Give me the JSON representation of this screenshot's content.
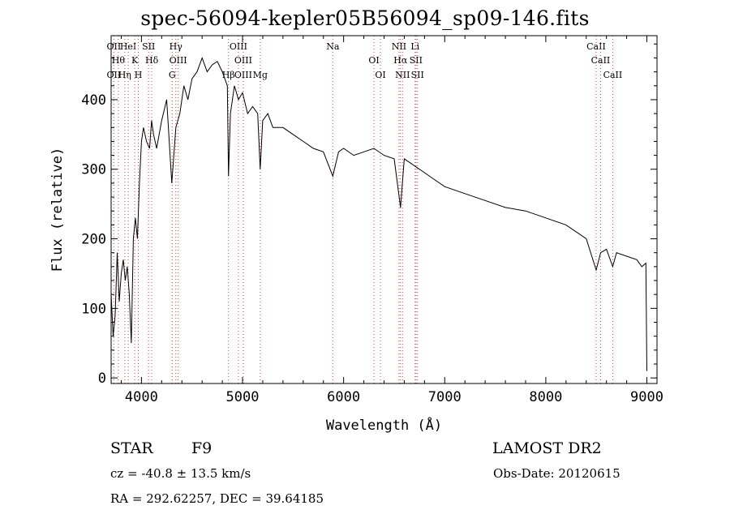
{
  "title": "spec-56094-kepler05B56094_sp09-146.fits",
  "info": {
    "class": "STAR",
    "subclass": "F9",
    "release": "LAMOST DR2",
    "cz": "cz = -40.8 ± 13.5 km/s",
    "obs_date": "Obs-Date: 20120615",
    "radec": "RA = 292.62257, DEC =  39.64185"
  },
  "chart_data": {
    "type": "line",
    "xlabel": "Wavelength (Å)",
    "ylabel": "Flux (relative)",
    "xlim": [
      3700,
      9100
    ],
    "ylim": [
      -8,
      492
    ],
    "xticks": [
      4000,
      5000,
      6000,
      7000,
      8000,
      9000
    ],
    "yticks": [
      0,
      100,
      200,
      300,
      400
    ],
    "grid": false,
    "series": [
      {
        "x": [
          3700,
          3720,
          3740,
          3760,
          3780,
          3800,
          3820,
          3840,
          3860,
          3880,
          3900,
          3920,
          3940,
          3960,
          3980,
          4000,
          4020,
          4050,
          4080,
          4100,
          4120,
          4150,
          4200,
          4250,
          4300,
          4340,
          4380,
          4420,
          4460,
          4500,
          4550,
          4600,
          4650,
          4700,
          4750,
          4800,
          4850,
          4861,
          4880,
          4920,
          4960,
          5000,
          5050,
          5100,
          5150,
          5175,
          5200,
          5250,
          5300,
          5400,
          5500,
          5600,
          5700,
          5800,
          5893,
          5950,
          6000,
          6100,
          6200,
          6300,
          6400,
          6500,
          6563,
          6600,
          6700,
          6800,
          6900,
          7000,
          7200,
          7400,
          7600,
          7800,
          8000,
          8200,
          8400,
          8498,
          8542,
          8600,
          8662,
          8700,
          8800,
          8900,
          8950,
          8990,
          9000
        ],
        "y": [
          120,
          60,
          90,
          180,
          110,
          150,
          170,
          140,
          160,
          120,
          50,
          200,
          230,
          200,
          280,
          340,
          360,
          340,
          330,
          370,
          350,
          330,
          370,
          400,
          280,
          360,
          380,
          420,
          400,
          430,
          440,
          460,
          440,
          450,
          455,
          440,
          420,
          290,
          380,
          420,
          400,
          410,
          380,
          390,
          380,
          300,
          370,
          380,
          360,
          360,
          350,
          340,
          330,
          325,
          290,
          325,
          330,
          320,
          325,
          330,
          320,
          315,
          245,
          315,
          305,
          295,
          285,
          275,
          265,
          255,
          245,
          240,
          230,
          220,
          200,
          155,
          180,
          185,
          160,
          180,
          175,
          170,
          160,
          165,
          10
        ]
      }
    ],
    "lines": [
      {
        "wave": 3727,
        "labels": [
          "OII",
          "OII"
        ]
      },
      {
        "wave": 3771,
        "labels": [
          "Hθ"
        ]
      },
      {
        "wave": 3835,
        "labels": [
          "Hη"
        ]
      },
      {
        "wave": 3869,
        "labels": [
          "HeI"
        ]
      },
      {
        "wave": 3934,
        "labels": [
          "K"
        ]
      },
      {
        "wave": 3969,
        "labels": [
          "H"
        ]
      },
      {
        "wave": 4071,
        "labels": [
          "SII"
        ]
      },
      {
        "wave": 4102,
        "labels": [
          "Hδ"
        ]
      },
      {
        "wave": 4304,
        "labels": [
          "G"
        ]
      },
      {
        "wave": 4340,
        "labels": [
          "Hγ"
        ]
      },
      {
        "wave": 4363,
        "labels": [
          "OIII"
        ]
      },
      {
        "wave": 4861,
        "labels": [
          "Hβ"
        ]
      },
      {
        "wave": 4959,
        "labels": [
          "OIII"
        ]
      },
      {
        "wave": 5007,
        "labels": [
          "OIII",
          "OIII"
        ]
      },
      {
        "wave": 5175,
        "labels": [
          "Mg"
        ]
      },
      {
        "wave": 5893,
        "labels": [
          "Na"
        ]
      },
      {
        "wave": 6300,
        "labels": [
          "OI"
        ]
      },
      {
        "wave": 6364,
        "labels": [
          "OI"
        ]
      },
      {
        "wave": 6548,
        "labels": [
          "NII"
        ]
      },
      {
        "wave": 6563,
        "labels": [
          "Hα"
        ]
      },
      {
        "wave": 6583,
        "labels": [
          "NII"
        ]
      },
      {
        "wave": 6707,
        "labels": [
          "Li"
        ]
      },
      {
        "wave": 6716,
        "labels": [
          "SII"
        ]
      },
      {
        "wave": 6731,
        "labels": [
          "SII"
        ]
      },
      {
        "wave": 8498,
        "labels": [
          "CaII"
        ]
      },
      {
        "wave": 8542,
        "labels": [
          "CaII"
        ]
      },
      {
        "wave": 8662,
        "labels": [
          "CaII"
        ]
      }
    ],
    "line_color": "#000000",
    "marker_color": "#d94040"
  }
}
